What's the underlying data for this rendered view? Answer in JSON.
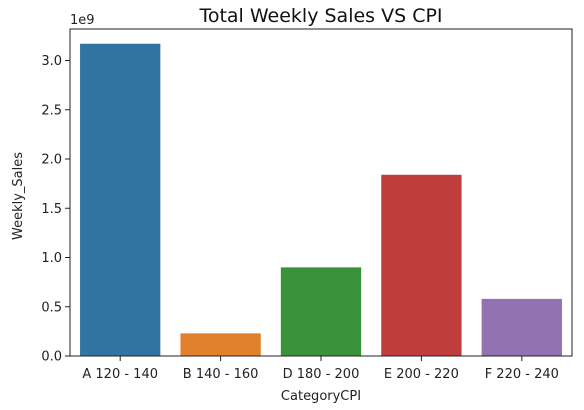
{
  "chart_data": {
    "type": "bar",
    "title": "Total Weekly Sales VS CPI",
    "xlabel": "CategoryCPI",
    "ylabel": "Weekly_Sales",
    "offset_label": "1e9",
    "categories": [
      "A 120 - 140",
      "B 140 - 160",
      "D 180 - 200",
      "E 200 - 220",
      "F 220 - 240"
    ],
    "values": [
      3170000000,
      230000000,
      900000000,
      1840000000,
      580000000
    ],
    "colors": [
      "#3274a1",
      "#e1812c",
      "#3a923a",
      "#c03d3e",
      "#9372b2"
    ],
    "ylim": [
      0,
      3320000000
    ],
    "yticks": [
      0,
      500000000,
      1000000000,
      1500000000,
      2000000000,
      2500000000,
      3000000000
    ],
    "ytick_labels": [
      "0.0",
      "0.5",
      "1.0",
      "1.5",
      "2.0",
      "2.5",
      "3.0"
    ],
    "grid": false,
    "legend": "none"
  }
}
